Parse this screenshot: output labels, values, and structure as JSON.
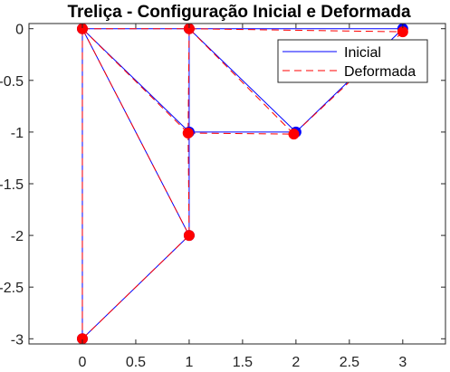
{
  "chart_data": {
    "type": "line",
    "title": "Treliça - Configuração Inicial e Deformada",
    "xlabel": "",
    "ylabel": "",
    "xlim": [
      -0.5,
      3.4
    ],
    "ylim": [
      -3.05,
      0.05
    ],
    "xticks": [
      0,
      0.5,
      1,
      1.5,
      2,
      2.5,
      3
    ],
    "xtick_labels": [
      "0",
      "0.5",
      "1",
      "1.5",
      "2",
      "2.5",
      "3"
    ],
    "yticks": [
      0,
      -0.5,
      -1,
      -1.5,
      -2,
      -2.5,
      -3
    ],
    "ytick_labels": [
      "0",
      "-0.5",
      "-1",
      "-1.5",
      "-2",
      "-2.5",
      "-3"
    ],
    "grid": false,
    "legend_position": "top-right",
    "series": [
      {
        "name": "Inicial",
        "color": "#0000ff",
        "line_style": "solid",
        "node_color": "#0000ff",
        "nodes": [
          [
            0,
            0
          ],
          [
            1,
            0
          ],
          [
            3,
            0
          ],
          [
            1,
            -1
          ],
          [
            2,
            -1
          ],
          [
            1,
            -2
          ],
          [
            0,
            -3
          ]
        ],
        "members": [
          [
            0,
            1
          ],
          [
            1,
            2
          ],
          [
            0,
            3
          ],
          [
            1,
            3
          ],
          [
            1,
            4
          ],
          [
            3,
            4
          ],
          [
            2,
            4
          ],
          [
            3,
            5
          ],
          [
            0,
            5
          ],
          [
            5,
            6
          ],
          [
            0,
            6
          ]
        ]
      },
      {
        "name": "Deformada",
        "color": "#ff0000",
        "line_style": "dashed",
        "node_color": "#ff0000",
        "nodes": [
          [
            0,
            0
          ],
          [
            1,
            0
          ],
          [
            3,
            -0.03
          ],
          [
            0.99,
            -1.01
          ],
          [
            1.98,
            -1.02
          ],
          [
            1,
            -2
          ],
          [
            0,
            -3
          ]
        ],
        "members": [
          [
            0,
            1
          ],
          [
            1,
            2
          ],
          [
            0,
            3
          ],
          [
            1,
            3
          ],
          [
            1,
            4
          ],
          [
            3,
            4
          ],
          [
            2,
            4
          ],
          [
            3,
            5
          ],
          [
            0,
            5
          ],
          [
            5,
            6
          ],
          [
            0,
            6
          ]
        ]
      }
    ]
  }
}
